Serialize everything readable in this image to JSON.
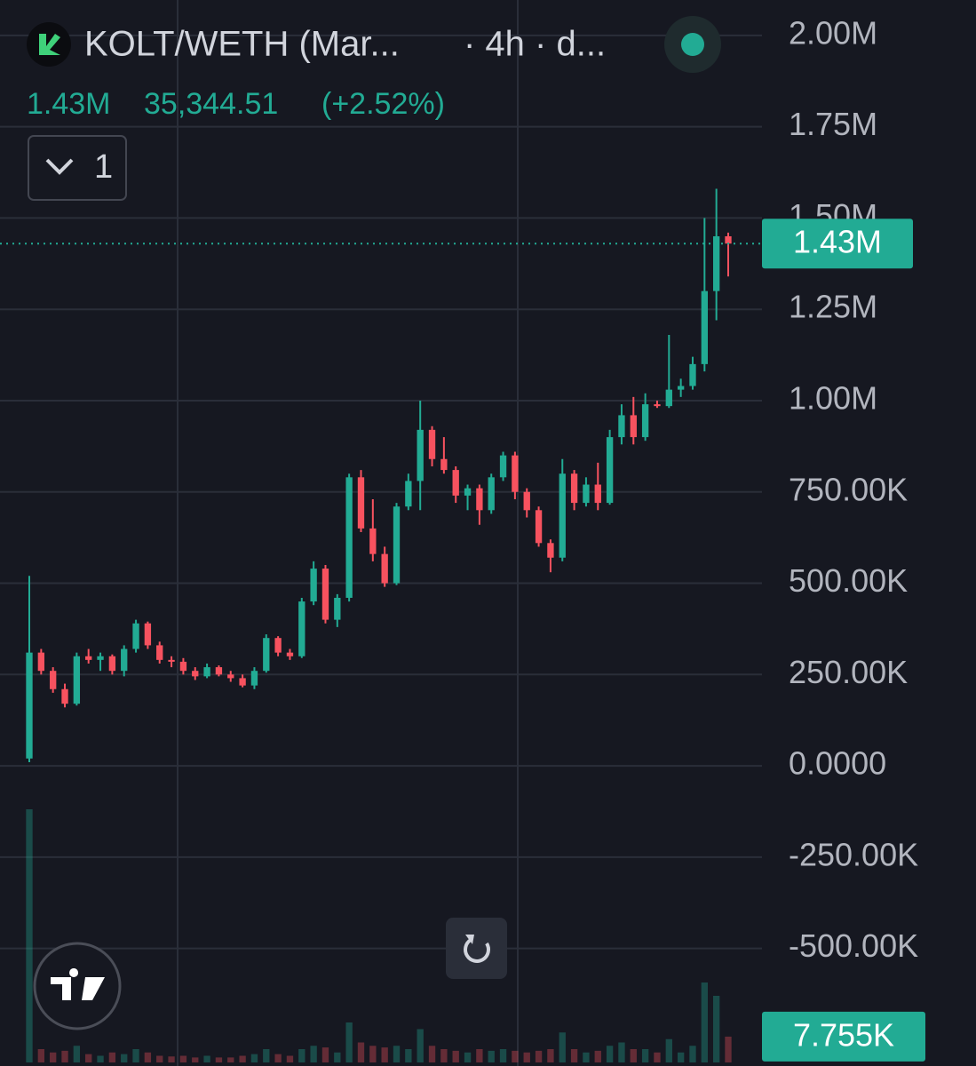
{
  "header": {
    "symbol": "KOLT/WETH (Mar...",
    "interval": "· 4h · d...",
    "price": "1.43M",
    "change": "35,344.51",
    "change_pct": "(+2.52%)",
    "indicator_count": "1"
  },
  "chart_data": {
    "type": "candlestick",
    "ylim": [
      -822000,
      2097000
    ],
    "yticks": [
      {
        "value": -500000,
        "label": "-500.00K"
      },
      {
        "value": -250000,
        "label": "-250.00K"
      },
      {
        "value": 0,
        "label": "0.0000"
      },
      {
        "value": 250000,
        "label": "250.00K"
      },
      {
        "value": 500000,
        "label": "500.00K"
      },
      {
        "value": 750000,
        "label": "750.00K"
      },
      {
        "value": 1000000,
        "label": "1.00M"
      },
      {
        "value": 1250000,
        "label": "1.25M"
      },
      {
        "value": 1500000,
        "label": "1.50M"
      },
      {
        "value": 1750000,
        "label": "1.75M"
      },
      {
        "value": 2000000,
        "label": "2.00M"
      }
    ],
    "grid": true,
    "up_color": "#22ab94",
    "down_color": "#f7525f",
    "open": [
      20000,
      310000,
      260000,
      210000,
      170000,
      300000,
      290000,
      300000,
      260000,
      320000,
      390000,
      330000,
      290000,
      285000,
      260000,
      245000,
      270000,
      250000,
      240000,
      220000,
      260000,
      350000,
      310000,
      300000,
      450000,
      540000,
      400000,
      460000,
      790000,
      650000,
      580000,
      500000,
      710000,
      780000,
      920000,
      840000,
      810000,
      740000,
      760000,
      700000,
      790000,
      850000,
      750000,
      700000,
      610000,
      570000,
      800000,
      720000,
      770000,
      720000,
      900000,
      960000,
      900000,
      990000,
      985000,
      1030000,
      1040000,
      1100000,
      1300000,
      1450000
    ],
    "high": [
      520000,
      320000,
      270000,
      225000,
      310000,
      320000,
      310000,
      305000,
      330000,
      400000,
      395000,
      340000,
      300000,
      295000,
      270000,
      280000,
      275000,
      260000,
      250000,
      270000,
      360000,
      355000,
      320000,
      460000,
      560000,
      550000,
      470000,
      800000,
      810000,
      730000,
      600000,
      720000,
      800000,
      1000000,
      930000,
      900000,
      820000,
      770000,
      770000,
      800000,
      860000,
      860000,
      760000,
      710000,
      620000,
      840000,
      810000,
      790000,
      830000,
      920000,
      990000,
      1010000,
      1020000,
      1000000,
      1180000,
      1060000,
      1120000,
      1500000,
      1580000,
      1460000
    ],
    "low": [
      10000,
      250000,
      200000,
      160000,
      165000,
      280000,
      260000,
      250000,
      245000,
      310000,
      320000,
      280000,
      270000,
      250000,
      235000,
      240000,
      245000,
      230000,
      215000,
      210000,
      255000,
      300000,
      290000,
      295000,
      440000,
      390000,
      380000,
      450000,
      640000,
      560000,
      490000,
      495000,
      700000,
      700000,
      820000,
      800000,
      720000,
      700000,
      660000,
      690000,
      780000,
      730000,
      680000,
      600000,
      530000,
      560000,
      700000,
      710000,
      700000,
      715000,
      880000,
      880000,
      890000,
      980000,
      980000,
      1010000,
      1030000,
      1080000,
      1220000,
      1340000
    ],
    "close": [
      310000,
      260000,
      210000,
      170000,
      300000,
      290000,
      300000,
      260000,
      320000,
      390000,
      330000,
      290000,
      285000,
      260000,
      245000,
      270000,
      250000,
      240000,
      220000,
      260000,
      350000,
      310000,
      300000,
      450000,
      540000,
      400000,
      460000,
      790000,
      650000,
      580000,
      500000,
      710000,
      780000,
      920000,
      840000,
      810000,
      740000,
      760000,
      700000,
      790000,
      850000,
      750000,
      700000,
      610000,
      570000,
      800000,
      720000,
      770000,
      720000,
      900000,
      960000,
      900000,
      990000,
      985000,
      1030000,
      1040000,
      1100000,
      1300000,
      1450000,
      1430000
    ],
    "volume": [
      76000,
      4000,
      3000,
      3500,
      5000,
      2500,
      2000,
      3000,
      2500,
      4000,
      3000,
      2000,
      1800,
      2000,
      1500,
      2000,
      1500,
      1500,
      2000,
      2500,
      4000,
      2500,
      2000,
      4000,
      5000,
      4500,
      3000,
      12000,
      6000,
      5000,
      4500,
      5000,
      4000,
      10000,
      5000,
      4000,
      3500,
      3000,
      4000,
      3500,
      4000,
      3500,
      3000,
      3500,
      4000,
      9000,
      4000,
      3000,
      3500,
      5000,
      6000,
      4000,
      4000,
      3000,
      7000,
      3000,
      5000,
      24000,
      20000,
      7755
    ],
    "volume_lim": [
      0,
      80000
    ],
    "last_price": {
      "value": 1430000,
      "label": "1.43M"
    },
    "last_volume": {
      "value": 7755,
      "label": "7.755K"
    }
  }
}
